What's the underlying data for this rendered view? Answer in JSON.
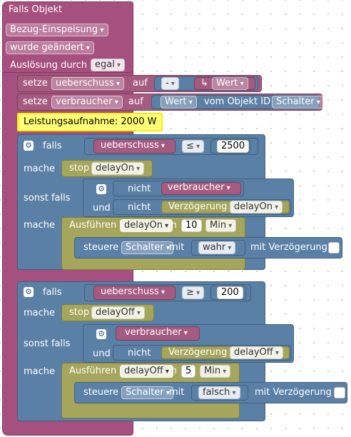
{
  "trigger": {
    "title": "Falls Objekt",
    "object_name": "Bezug-Einspeisung",
    "condition": "wurde geändert",
    "trigger_label": "Auslösung durch",
    "trigger_value": "egal"
  },
  "set1": {
    "keyword": "setze",
    "variable": "ueberschuss",
    "to": "auf",
    "operator": "-",
    "value_icon": "↳",
    "value": "Wert"
  },
  "set2": {
    "keyword": "setze",
    "variable": "verbraucher",
    "to": "auf",
    "attr": "Wert",
    "of_object": "vom Objekt ID",
    "object_id": "Schalter"
  },
  "comment": "Leistungsaufnahme: 2000 W",
  "if1": {
    "if_label": "falls",
    "variable": "ueberschuss",
    "operator": "≤",
    "number": "2500",
    "do_label": "mache",
    "stop_label": "stop",
    "stop_target": "delayOn",
    "elseif_label": "sonst falls",
    "not1": "nicht",
    "cond_var": "verbraucher",
    "and_label": "und",
    "not2": "nicht",
    "delay_label": "Verzögerung",
    "delay_target": "delayOn",
    "do2_label": "mache",
    "exec_label": "Ausführen",
    "exec_name": "delayOn",
    "in_label": "in",
    "duration": "10",
    "unit": "Min",
    "control_label": "steuere",
    "control_target": "Schalter",
    "with_label": "mit",
    "control_value": "wahr",
    "with_delay_label": "mit Verzögerung"
  },
  "if2": {
    "if_label": "falls",
    "variable": "ueberschuss",
    "operator": "≥",
    "number": "200",
    "do_label": "mache",
    "stop_label": "stop",
    "stop_target": "delayOff",
    "elseif_label": "sonst falls",
    "cond_var": "verbraucher",
    "and_label": "und",
    "not2": "nicht",
    "delay_label": "Verzögerung",
    "delay_target": "delayOff",
    "do2_label": "mache",
    "exec_label": "Ausführen",
    "exec_name": "delayOff",
    "in_label": "in",
    "duration": "5",
    "unit": "Min",
    "control_label": "steuere",
    "control_target": "Schalter",
    "with_label": "mit",
    "control_value": "falsch",
    "with_delay_label": "mit Verzögerung"
  },
  "icons": {
    "gear": "gear-icon",
    "arrow": "arrow-return-icon"
  },
  "colors": {
    "event": "#a5507e",
    "variable": "#a55b80",
    "logic": "#5b80a5",
    "timeout": "#a5a55b",
    "comment": "#ffff77"
  }
}
